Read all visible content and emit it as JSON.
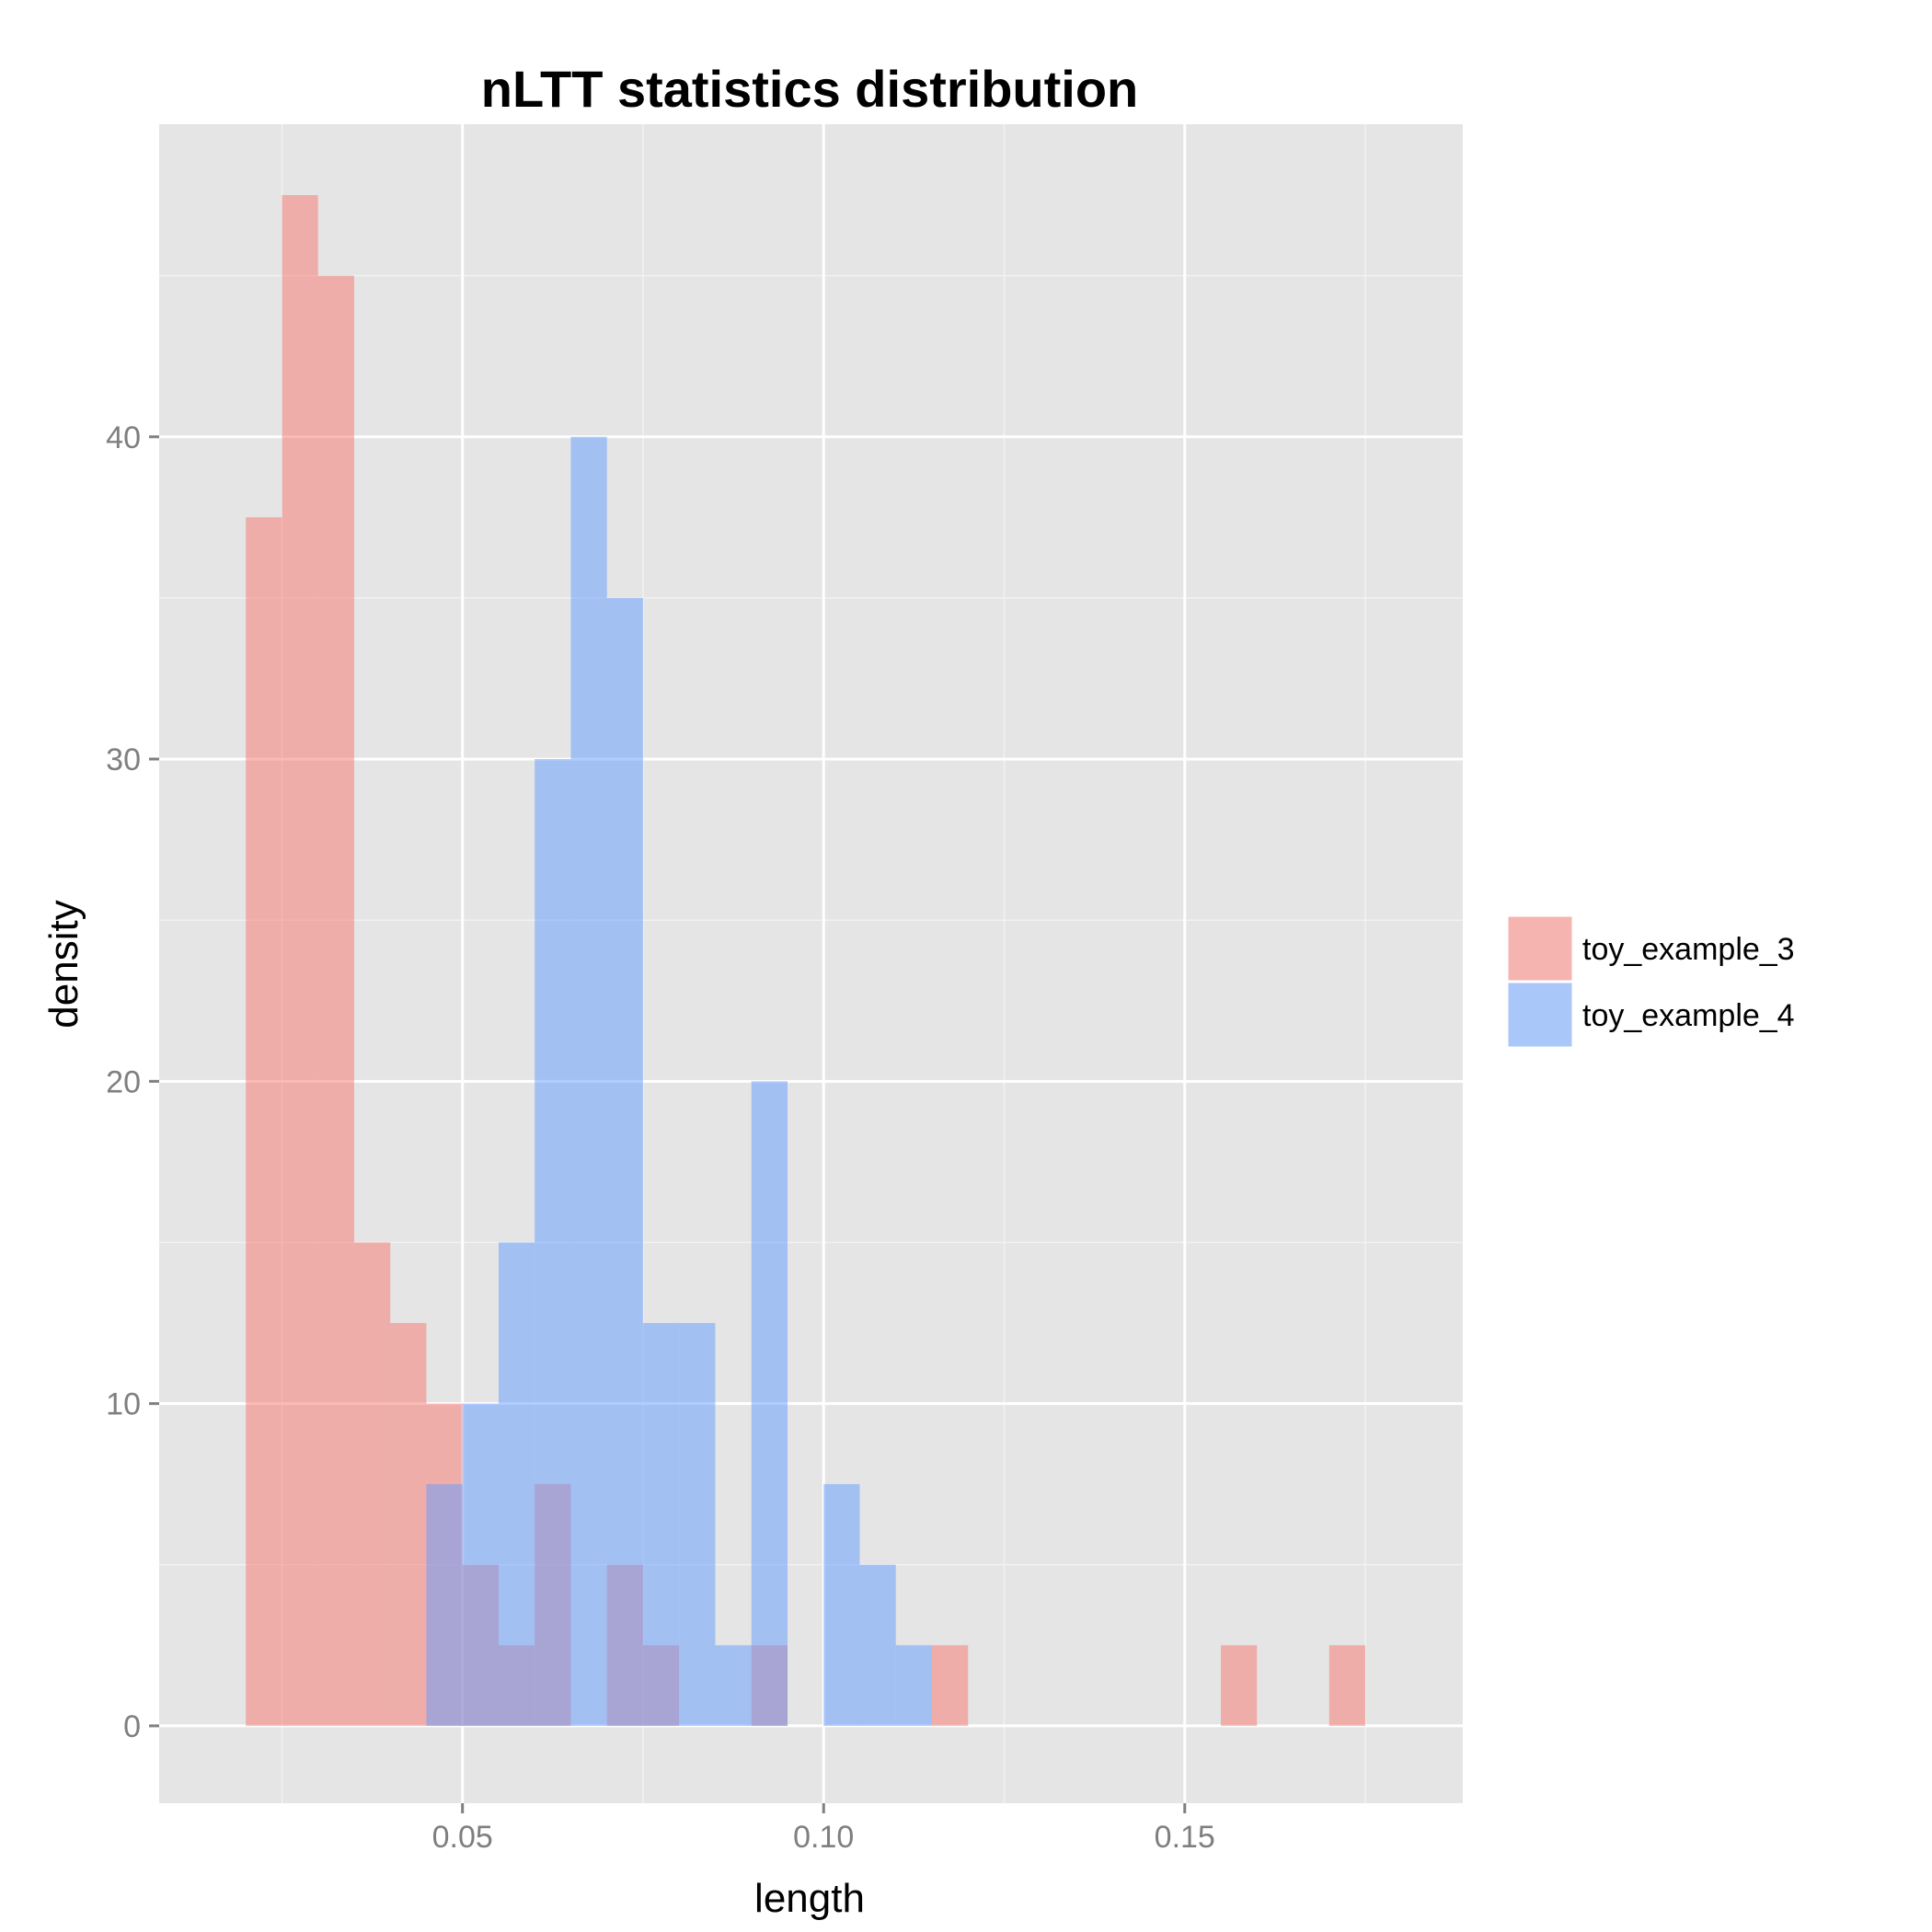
{
  "chart_data": {
    "type": "bar",
    "subtype": "overlaid-histogram",
    "title": "nLTT statistics distribution",
    "xlabel": "length",
    "ylabel": "density",
    "xlim": [
      0.008,
      0.1885
    ],
    "ylim": [
      -2.4,
      49.7
    ],
    "x_ticks": [
      {
        "value": 0.05,
        "label": "0.05"
      },
      {
        "value": 0.1,
        "label": "0.10"
      },
      {
        "value": 0.15,
        "label": "0.15"
      }
    ],
    "x_minor_ticks": [
      0.025,
      0.075,
      0.125,
      0.175
    ],
    "y_ticks": [
      {
        "value": 0,
        "label": "0"
      },
      {
        "value": 10,
        "label": "10"
      },
      {
        "value": 20,
        "label": "20"
      },
      {
        "value": 30,
        "label": "30"
      },
      {
        "value": 40,
        "label": "40"
      }
    ],
    "y_minor_ticks": [
      5,
      15,
      25,
      35,
      45
    ],
    "grid": true,
    "panel_background": "#e5e5e5",
    "legend": {
      "placement": "right"
    },
    "bin_width": 0.005,
    "series": [
      {
        "name": "toy_example_3",
        "color": "#f8766d",
        "alpha": 0.5,
        "bins": [
          {
            "x0": 0.02,
            "value": 37.5
          },
          {
            "x0": 0.025,
            "value": 47.5
          },
          {
            "x0": 0.03,
            "value": 45
          },
          {
            "x0": 0.035,
            "value": 15
          },
          {
            "x0": 0.04,
            "value": 12.5
          },
          {
            "x0": 0.045,
            "value": 10
          },
          {
            "x0": 0.05,
            "value": 5
          },
          {
            "x0": 0.055,
            "value": 2.5
          },
          {
            "x0": 0.06,
            "value": 7.5
          },
          {
            "x0": 0.065,
            "value": 0
          },
          {
            "x0": 0.07,
            "value": 5
          },
          {
            "x0": 0.075,
            "value": 2.5
          },
          {
            "x0": 0.08,
            "value": 0
          },
          {
            "x0": 0.085,
            "value": 0
          },
          {
            "x0": 0.09,
            "value": 2.5
          },
          {
            "x0": 0.095,
            "value": 0
          },
          {
            "x0": 0.1,
            "value": 0
          },
          {
            "x0": 0.105,
            "value": 0
          },
          {
            "x0": 0.11,
            "value": 0
          },
          {
            "x0": 0.115,
            "value": 2.5
          },
          {
            "x0": 0.12,
            "value": 0
          },
          {
            "x0": 0.125,
            "value": 0
          },
          {
            "x0": 0.13,
            "value": 0
          },
          {
            "x0": 0.135,
            "value": 0
          },
          {
            "x0": 0.14,
            "value": 0
          },
          {
            "x0": 0.145,
            "value": 0
          },
          {
            "x0": 0.15,
            "value": 0
          },
          {
            "x0": 0.155,
            "value": 2.5
          },
          {
            "x0": 0.16,
            "value": 0
          },
          {
            "x0": 0.165,
            "value": 0
          },
          {
            "x0": 0.17,
            "value": 2.5
          }
        ]
      },
      {
        "name": "toy_example_4",
        "color": "#619cff",
        "alpha": 0.5,
        "bins": [
          {
            "x0": 0.045,
            "value": 7.5
          },
          {
            "x0": 0.05,
            "value": 10
          },
          {
            "x0": 0.055,
            "value": 15
          },
          {
            "x0": 0.06,
            "value": 30
          },
          {
            "x0": 0.065,
            "value": 40
          },
          {
            "x0": 0.07,
            "value": 35
          },
          {
            "x0": 0.075,
            "value": 12.5
          },
          {
            "x0": 0.08,
            "value": 12.5
          },
          {
            "x0": 0.085,
            "value": 2.5
          },
          {
            "x0": 0.09,
            "value": 20
          },
          {
            "x0": 0.095,
            "value": 0
          },
          {
            "x0": 0.1,
            "value": 7.5
          },
          {
            "x0": 0.105,
            "value": 5
          },
          {
            "x0": 0.11,
            "value": 2.5
          }
        ]
      }
    ]
  }
}
